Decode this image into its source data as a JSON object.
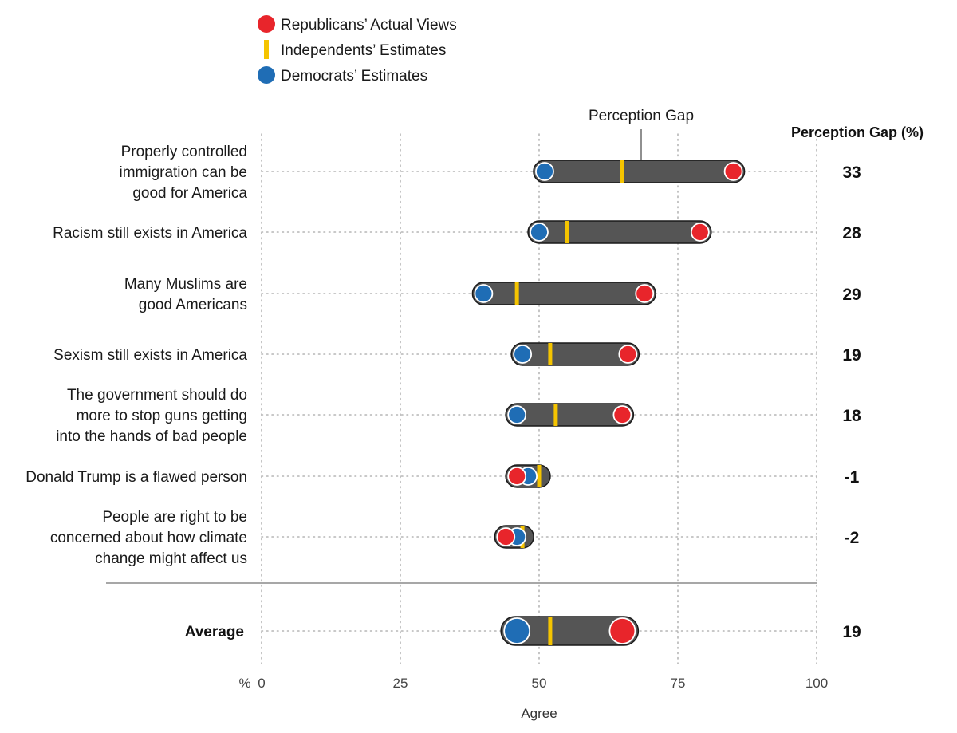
{
  "chart_data": {
    "type": "dumbbell",
    "legend": [
      {
        "name": "Republicans’ Actual Views",
        "marker": "circle",
        "color": "#e8252b"
      },
      {
        "name": "Independents’ Estimates",
        "marker": "bar",
        "color": "#f5c400"
      },
      {
        "name": "Democrats’ Estimates",
        "marker": "circle",
        "color": "#1f6db5"
      }
    ],
    "gap_column_header": "Perception Gap (%)",
    "annotation": "Perception Gap",
    "xlabel": "Agree",
    "unit_label": "%",
    "xlim": [
      0,
      100
    ],
    "xticks": [
      0,
      25,
      50,
      75,
      100
    ],
    "grid": "dotted",
    "rows": [
      {
        "label": [
          "Properly controlled",
          "immigration can be",
          "good for America"
        ],
        "republicans": 85,
        "independents": 65,
        "democrats": 51,
        "gap": "33"
      },
      {
        "label": [
          "Racism still exists in America"
        ],
        "republicans": 79,
        "independents": 55,
        "democrats": 50,
        "gap": "28"
      },
      {
        "label": [
          "Many Muslims are",
          "good Americans"
        ],
        "republicans": 69,
        "independents": 46,
        "democrats": 40,
        "gap": "29"
      },
      {
        "label": [
          "Sexism still exists in America"
        ],
        "republicans": 66,
        "independents": 52,
        "democrats": 47,
        "gap": "19"
      },
      {
        "label": [
          "The government should do",
          "more to stop guns getting",
          "into the hands of bad people"
        ],
        "republicans": 65,
        "independents": 53,
        "democrats": 46,
        "gap": "18"
      },
      {
        "label": [
          "Donald Trump is a flawed person"
        ],
        "republicans": 46,
        "independents": 50,
        "democrats": 48,
        "gap": "-1"
      },
      {
        "label": [
          "People are right to be",
          "concerned about how climate",
          "change might affect us"
        ],
        "republicans": 44,
        "independents": 47,
        "democrats": 46,
        "gap": "-2"
      }
    ],
    "average": {
      "label": [
        "Average"
      ],
      "republicans": 65,
      "independents": 52,
      "democrats": 46,
      "gap": "19"
    }
  },
  "colors": {
    "track": "#555555",
    "track_outline": "#1a1a1a",
    "grid": "#b5b5b5",
    "divider": "#8a8a8a"
  }
}
